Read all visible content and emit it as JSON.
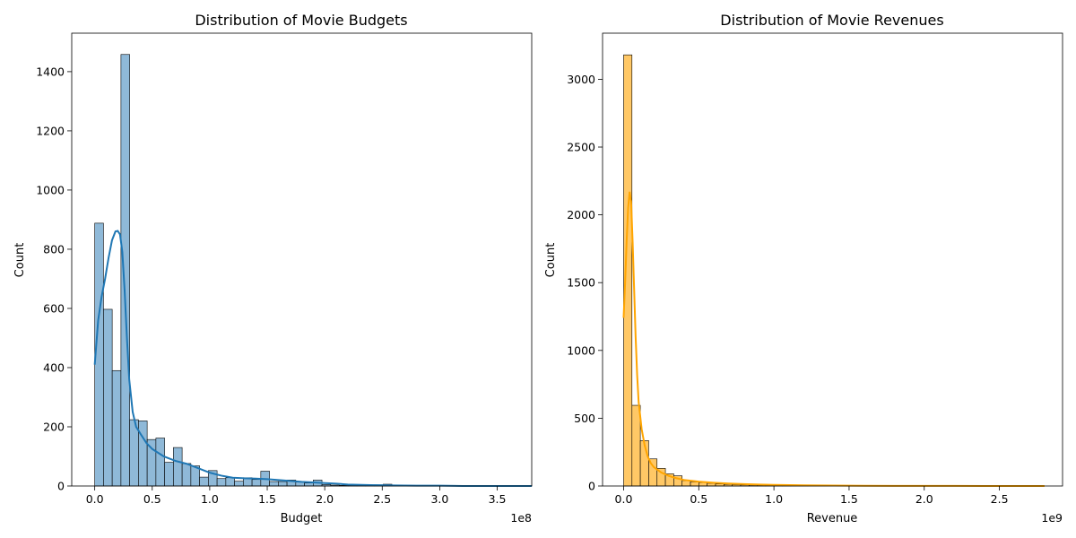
{
  "chart_data": [
    {
      "type": "bar",
      "subtype": "histogram",
      "title": "Distribution of Movie Budgets",
      "xlabel": "Budget",
      "ylabel": "Count",
      "x_offset_label": "1e8",
      "xlim": [
        -0.2,
        3.8
      ],
      "ylim": [
        0,
        1530
      ],
      "x_ticks": [
        0.0,
        0.5,
        1.0,
        1.5,
        2.0,
        2.5,
        3.0,
        3.5
      ],
      "x_tick_labels": [
        "0.0",
        "0.5",
        "1.0",
        "1.5",
        "2.0",
        "2.5",
        "3.0",
        "3.5"
      ],
      "y_ticks": [
        0,
        200,
        400,
        600,
        800,
        1000,
        1200,
        1400
      ],
      "y_tick_labels": [
        "0",
        "200",
        "400",
        "600",
        "800",
        "1000",
        "1200",
        "1400"
      ],
      "bin_start": 0.0,
      "bin_width": 0.076,
      "values": [
        888,
        597,
        390,
        1458,
        224,
        220,
        157,
        162,
        80,
        130,
        76,
        68,
        30,
        52,
        25,
        28,
        16,
        28,
        22,
        50,
        15,
        15,
        20,
        13,
        10,
        20,
        5,
        3,
        2,
        2,
        2,
        2,
        4,
        6,
        2,
        1,
        1,
        1,
        1,
        1,
        1,
        1,
        1,
        1,
        1,
        1,
        1,
        1,
        1,
        1
      ],
      "bar_color": "#1f77b4",
      "bar_fill": "#8fb9d8",
      "kde": {
        "x": [
          0.0,
          0.03,
          0.06,
          0.09,
          0.12,
          0.15,
          0.18,
          0.2,
          0.22,
          0.24,
          0.26,
          0.28,
          0.3,
          0.33,
          0.36,
          0.4,
          0.45,
          0.5,
          0.6,
          0.7,
          0.8,
          0.9,
          1.0,
          1.1,
          1.2,
          1.3,
          1.4,
          1.5,
          1.6,
          1.7,
          1.8,
          1.9,
          2.0,
          2.1,
          2.2,
          2.4,
          2.6,
          2.8,
          3.0,
          3.2,
          3.4,
          3.6,
          3.8
        ],
        "y": [
          410,
          560,
          640,
          700,
          770,
          830,
          860,
          862,
          850,
          790,
          660,
          500,
          360,
          250,
          200,
          175,
          145,
          125,
          100,
          85,
          75,
          60,
          45,
          35,
          28,
          26,
          25,
          23,
          20,
          17,
          14,
          12,
          10,
          8,
          5,
          3,
          2,
          1,
          1,
          0,
          0,
          0,
          0
        ]
      }
    },
    {
      "type": "bar",
      "subtype": "histogram",
      "title": "Distribution of Movie Revenues",
      "xlabel": "Revenue",
      "ylabel": "Count",
      "x_offset_label": "1e9",
      "xlim": [
        -0.14,
        2.92
      ],
      "ylim": [
        0,
        3340
      ],
      "x_ticks": [
        0.0,
        0.5,
        1.0,
        1.5,
        2.0,
        2.5
      ],
      "x_tick_labels": [
        "0.0",
        "0.5",
        "1.0",
        "1.5",
        "2.0",
        "2.5"
      ],
      "y_ticks": [
        0,
        500,
        1000,
        1500,
        2000,
        2500,
        3000
      ],
      "y_tick_labels": [
        "0",
        "500",
        "1000",
        "1500",
        "2000",
        "2500",
        "3000"
      ],
      "bin_start": 0.0,
      "bin_width": 0.0556,
      "values": [
        3180,
        595,
        335,
        200,
        130,
        90,
        75,
        40,
        30,
        25,
        20,
        15,
        12,
        10,
        8,
        7,
        6,
        5,
        4,
        4,
        3,
        3,
        2,
        2,
        2,
        2,
        1,
        1,
        1,
        1,
        1,
        1,
        1,
        1,
        1,
        1,
        1,
        1,
        1,
        1,
        1,
        1,
        1,
        1,
        1,
        1,
        1,
        1,
        1,
        1
      ],
      "bar_color": "#ffa500",
      "bar_fill": "#ffc866",
      "kde": {
        "x": [
          0.0,
          0.01,
          0.02,
          0.03,
          0.04,
          0.05,
          0.06,
          0.07,
          0.08,
          0.09,
          0.1,
          0.12,
          0.14,
          0.16,
          0.18,
          0.2,
          0.25,
          0.3,
          0.35,
          0.4,
          0.5,
          0.6,
          0.7,
          0.8,
          0.9,
          1.0,
          1.2,
          1.4,
          1.6,
          1.8,
          2.0,
          2.2,
          2.4,
          2.6,
          2.8
        ],
        "y": [
          1240,
          1500,
          1800,
          2050,
          2170,
          2100,
          1800,
          1450,
          1100,
          820,
          620,
          420,
          300,
          220,
          170,
          140,
          100,
          75,
          58,
          45,
          32,
          24,
          18,
          14,
          11,
          8,
          5,
          3,
          2,
          1,
          1,
          1,
          0,
          0,
          0
        ]
      }
    }
  ]
}
